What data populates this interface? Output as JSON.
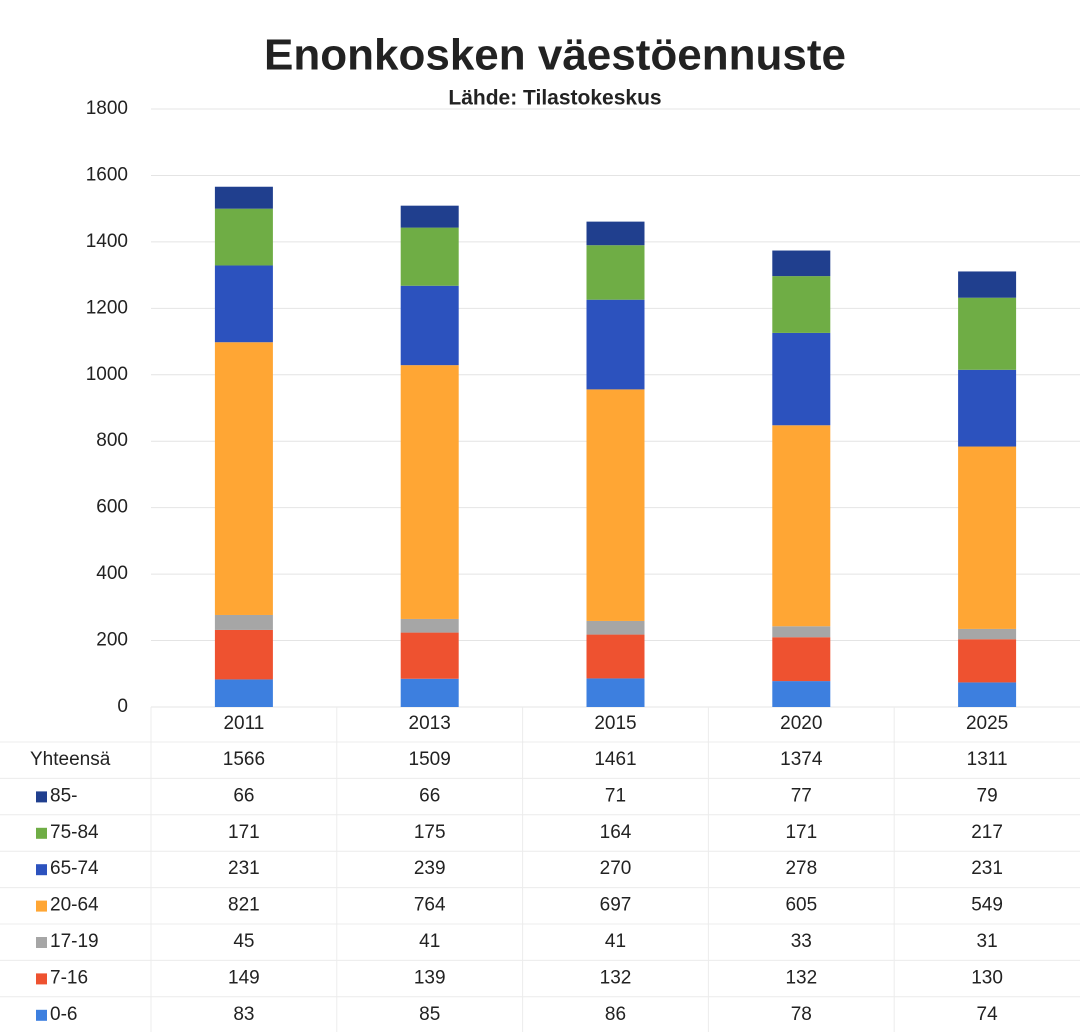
{
  "chart_data": {
    "type": "stacked_bar",
    "title": "Enonkosken väestöennuste",
    "subtitle": "Lähde: Tilastokeskus",
    "categories": [
      "2011",
      "2013",
      "2015",
      "2020",
      "2025"
    ],
    "ylim": [
      0,
      1800
    ],
    "yticks": [
      0,
      200,
      400,
      600,
      800,
      1000,
      1200,
      1400,
      1600,
      1800
    ],
    "grid": true,
    "totals": {
      "name": "Yhteensä",
      "values": [
        1566,
        1509,
        1461,
        1374,
        1311
      ]
    },
    "series": [
      {
        "name": "85-",
        "color": "#203f8e",
        "values": [
          66,
          66,
          71,
          77,
          79
        ]
      },
      {
        "name": "75-84",
        "color": "#6fad45",
        "values": [
          171,
          175,
          164,
          171,
          217
        ]
      },
      {
        "name": "65-74",
        "color": "#2c52be",
        "values": [
          231,
          239,
          270,
          278,
          231
        ]
      },
      {
        "name": "20-64",
        "color": "#ffa634",
        "values": [
          821,
          764,
          697,
          605,
          549
        ]
      },
      {
        "name": "17-19",
        "color": "#a6a6a6",
        "values": [
          45,
          41,
          41,
          33,
          31
        ]
      },
      {
        "name": "7-16",
        "color": "#ee5230",
        "values": [
          149,
          139,
          132,
          132,
          130
        ]
      },
      {
        "name": "0-6",
        "color": "#3d7fdf",
        "values": [
          83,
          85,
          86,
          78,
          74
        ]
      }
    ]
  }
}
